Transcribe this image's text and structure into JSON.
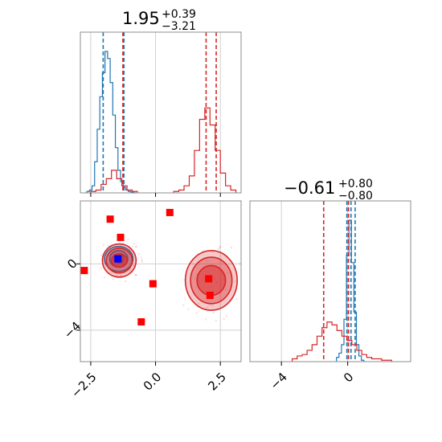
{
  "chart_data": [
    {
      "panel": "top-left",
      "type": "histogram",
      "title": {
        "value": "1.95",
        "plus": "+0.39",
        "minus": "−3.21"
      },
      "xlim": [
        -2.9,
        3.3
      ],
      "xticks": [
        -2.5,
        0.0,
        2.5
      ],
      "grid": true,
      "series": [
        {
          "color": "#1f77b4",
          "bins_x": [
            -2.6,
            -2.5,
            -2.4,
            -2.3,
            -2.2,
            -2.1,
            -2.0,
            -1.9,
            -1.8,
            -1.7,
            -1.6,
            -1.5,
            -1.4,
            -1.3,
            -1.2,
            -1.1,
            -1.0,
            -0.9,
            -0.8
          ],
          "counts": [
            0.01,
            0.02,
            0.05,
            0.22,
            0.45,
            0.68,
            0.85,
            1.0,
            0.95,
            0.78,
            0.55,
            0.32,
            0.16,
            0.08,
            0.04,
            0.02,
            0.01,
            0.005,
            0.0
          ],
          "quantiles": [
            -2.02,
            -1.22
          ]
        },
        {
          "color": "#d62728",
          "bins_x": [
            -2.4,
            -2.2,
            -2.0,
            -1.8,
            -1.6,
            -1.4,
            -1.2,
            -1.0,
            -0.8,
            0.8,
            1.0,
            1.2,
            1.4,
            1.6,
            1.8,
            2.0,
            2.2,
            2.4,
            2.6,
            2.8,
            3.0
          ],
          "counts": [
            0.01,
            0.02,
            0.06,
            0.1,
            0.16,
            0.1,
            0.05,
            0.02,
            0.01,
            0.01,
            0.02,
            0.05,
            0.12,
            0.3,
            0.52,
            0.6,
            0.48,
            0.3,
            0.14,
            0.05,
            0.02
          ],
          "quantiles": [
            -1.26,
            1.95,
            2.34
          ]
        }
      ]
    },
    {
      "panel": "bottom-left",
      "type": "scatter",
      "xlim": [
        -2.9,
        3.3
      ],
      "ylim": [
        -5.9,
        3.8
      ],
      "xticks": [
        -2.5,
        0.0,
        2.5
      ],
      "xtick_labels": [
        "−2.5",
        "0.0",
        "2.5"
      ],
      "yticks": [
        0,
        -4
      ],
      "ytick_labels": [
        "0",
        "−4"
      ],
      "grid": true,
      "points": [
        {
          "x": -1.75,
          "y": 2.7,
          "color": "#ff0000"
        },
        {
          "x": 0.55,
          "y": 3.1,
          "color": "#ff0000"
        },
        {
          "x": -1.35,
          "y": 1.6,
          "color": "#ff0000"
        },
        {
          "x": -2.75,
          "y": -0.4,
          "color": "#ff0000"
        },
        {
          "x": -0.1,
          "y": -1.2,
          "color": "#ff0000"
        },
        {
          "x": -0.55,
          "y": -3.5,
          "color": "#ff0000"
        },
        {
          "x": 2.05,
          "y": -0.9,
          "color": "#ff0000"
        },
        {
          "x": 2.1,
          "y": -1.9,
          "color": "#ff0000"
        },
        {
          "x": -1.45,
          "y": 0.3,
          "color": "#0000ff"
        }
      ],
      "contours": [
        {
          "color": "#1f77b4",
          "cx": -1.42,
          "cy": 0.3,
          "rx": [
            0.55,
            0.35,
            0.18
          ],
          "ry": [
            0.75,
            0.5,
            0.25
          ]
        },
        {
          "color": "#d62728",
          "cx": -1.4,
          "cy": 0.2,
          "rx": [
            0.65,
            0.5,
            0.3
          ],
          "ry": [
            1.0,
            0.75,
            0.4
          ]
        },
        {
          "color": "#d62728",
          "cx": 2.15,
          "cy": -1.0,
          "rx": [
            1.0,
            0.8,
            0.55
          ],
          "ry": [
            1.8,
            1.4,
            0.9
          ]
        }
      ]
    },
    {
      "panel": "bottom-right",
      "type": "histogram",
      "title": {
        "value": "−0.61",
        "plus": "+0.80",
        "minus": "−0.80"
      },
      "xlim": [
        -5.9,
        3.8
      ],
      "xticks": [
        -4,
        0
      ],
      "xtick_labels": [
        "−4",
        "0"
      ],
      "grid": true,
      "series": [
        {
          "color": "#1f77b4",
          "bins_x": [
            -0.6,
            -0.45,
            -0.3,
            -0.15,
            0.0,
            0.15,
            0.3,
            0.45,
            0.6,
            0.75,
            0.9
          ],
          "counts": [
            0.03,
            0.06,
            0.12,
            0.3,
            0.75,
            1.0,
            0.7,
            0.35,
            0.12,
            0.04,
            0.01
          ],
          "quantiles": [
            -0.05,
            0.2,
            0.45
          ]
        },
        {
          "color": "#d62728",
          "bins_x": [
            -3.2,
            -2.9,
            -2.6,
            -2.3,
            -2.0,
            -1.7,
            -1.4,
            -1.1,
            -0.8,
            -0.5,
            -0.2,
            0.1,
            0.4,
            0.7,
            1.0,
            1.3,
            1.6,
            1.9,
            2.2,
            2.5
          ],
          "counts": [
            0.02,
            0.04,
            0.05,
            0.08,
            0.12,
            0.18,
            0.24,
            0.28,
            0.26,
            0.22,
            0.18,
            0.15,
            0.12,
            0.08,
            0.05,
            0.03,
            0.02,
            0.02,
            0.01,
            0.01
          ],
          "quantiles": [
            -1.45,
            0.05
          ]
        }
      ]
    }
  ]
}
